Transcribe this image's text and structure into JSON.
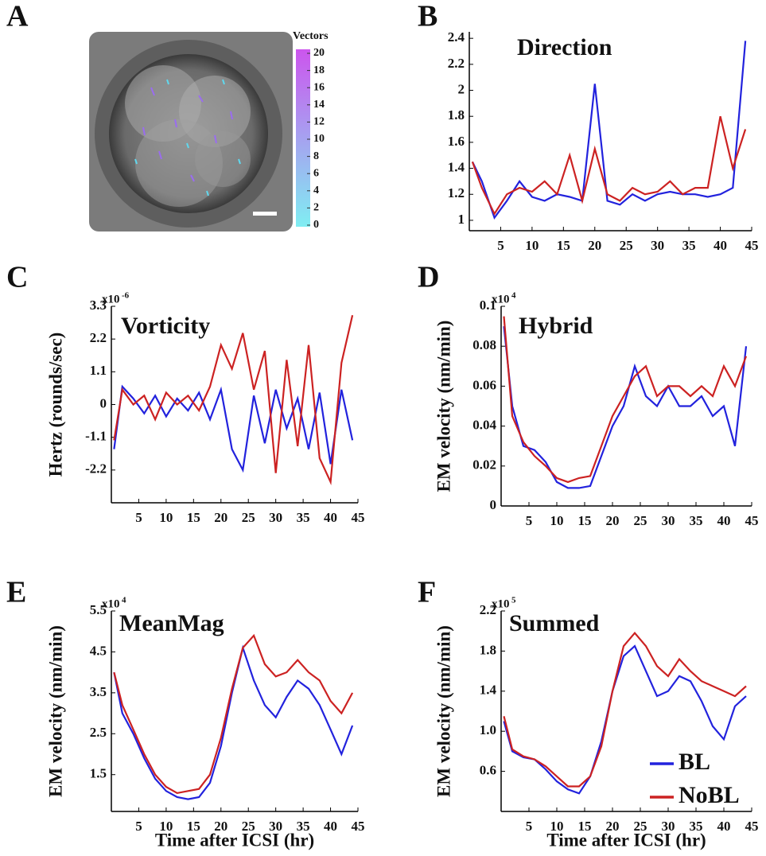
{
  "panel_a": {
    "label": "A",
    "colorbar_title": "Vectors",
    "clim": [
      0,
      20
    ],
    "colorbar_ticks": [
      0,
      2,
      4,
      6,
      8,
      10,
      12,
      14,
      16,
      18,
      20
    ],
    "colors": [
      "#80eef2",
      "#cc55ee"
    ]
  },
  "chart_data": [
    {
      "type": "line",
      "panel": "B",
      "title": "Direction",
      "x": [
        0.5,
        2,
        4,
        6,
        8,
        10,
        12,
        14,
        16,
        18,
        20,
        22,
        24,
        26,
        28,
        30,
        32,
        34,
        36,
        38,
        40,
        42,
        44
      ],
      "series": [
        {
          "color": "#2222dd",
          "values": [
            1.45,
            1.3,
            1.02,
            1.15,
            1.3,
            1.18,
            1.15,
            1.2,
            1.18,
            1.15,
            2.05,
            1.15,
            1.12,
            1.2,
            1.15,
            1.2,
            1.22,
            1.2,
            1.2,
            1.18,
            1.2,
            1.25,
            2.38
          ]
        },
        {
          "color": "#cc2222",
          "values": [
            1.45,
            1.25,
            1.05,
            1.2,
            1.25,
            1.22,
            1.3,
            1.2,
            1.5,
            1.15,
            1.55,
            1.2,
            1.15,
            1.25,
            1.2,
            1.22,
            1.3,
            1.2,
            1.25,
            1.25,
            1.8,
            1.4,
            1.7
          ]
        }
      ],
      "xlim": [
        0,
        45
      ],
      "xticks": [
        5,
        10,
        15,
        20,
        25,
        30,
        35,
        40,
        45
      ],
      "ylim": [
        0.92,
        2.45
      ],
      "yticks": [
        1,
        1.2,
        1.4,
        1.6,
        1.8,
        2,
        2.2,
        2.4
      ]
    },
    {
      "type": "line",
      "panel": "C",
      "title": "Vorticity",
      "ylabel": "Hertz (rounds/sec)",
      "y_multiplier": {
        "base": "x10",
        "exponent": "-6"
      },
      "x": [
        0.5,
        2,
        4,
        6,
        8,
        10,
        12,
        14,
        16,
        18,
        20,
        22,
        24,
        26,
        28,
        30,
        32,
        34,
        36,
        38,
        40,
        42,
        44
      ],
      "series": [
        {
          "color": "#2222dd",
          "values": [
            -1.5,
            0.6,
            0.2,
            -0.3,
            0.3,
            -0.4,
            0.2,
            -0.2,
            0.4,
            -0.5,
            0.5,
            -1.5,
            -2.2,
            0.3,
            -1.3,
            0.5,
            -0.8,
            0.2,
            -1.5,
            0.4,
            -2,
            0.5,
            -1.2
          ]
        },
        {
          "color": "#cc2222",
          "values": [
            -1.2,
            0.5,
            0,
            0.3,
            -0.5,
            0.4,
            0,
            0.3,
            -0.2,
            0.6,
            2,
            1.2,
            2.4,
            0.5,
            1.8,
            -2.3,
            1.5,
            -1.4,
            2,
            -1.8,
            -2.6,
            1.4,
            3
          ]
        }
      ],
      "xlim": [
        0,
        45
      ],
      "xticks": [
        5,
        10,
        15,
        20,
        25,
        30,
        35,
        40,
        45
      ],
      "ylim": [
        -3.3,
        3.3
      ],
      "yticks": [
        -2.2,
        -1.1,
        0,
        1.1,
        2.2,
        3.3
      ]
    },
    {
      "type": "line",
      "panel": "D",
      "title": "Hybrid",
      "ylabel": "EM velocity (nm/min)",
      "y_multiplier": {
        "base": "x10",
        "exponent": "4"
      },
      "x": [
        0.5,
        2,
        4,
        6,
        8,
        10,
        12,
        14,
        16,
        18,
        20,
        22,
        24,
        26,
        28,
        30,
        32,
        34,
        36,
        38,
        40,
        42,
        44
      ],
      "series": [
        {
          "color": "#2222dd",
          "values": [
            0.09,
            0.05,
            0.03,
            0.028,
            0.022,
            0.012,
            0.009,
            0.009,
            0.01,
            0.025,
            0.04,
            0.05,
            0.07,
            0.055,
            0.05,
            0.06,
            0.05,
            0.05,
            0.055,
            0.045,
            0.05,
            0.03,
            0.08
          ]
        },
        {
          "color": "#cc2222",
          "values": [
            0.095,
            0.045,
            0.032,
            0.025,
            0.02,
            0.014,
            0.012,
            0.014,
            0.015,
            0.03,
            0.045,
            0.055,
            0.065,
            0.07,
            0.055,
            0.06,
            0.06,
            0.055,
            0.06,
            0.055,
            0.07,
            0.06,
            0.075
          ]
        }
      ],
      "xlim": [
        0,
        45
      ],
      "xticks": [
        5,
        10,
        15,
        20,
        25,
        30,
        35,
        40,
        45
      ],
      "ylim": [
        0,
        0.1
      ],
      "yticks": [
        0,
        0.02,
        0.04,
        0.06,
        0.08,
        0.1
      ]
    },
    {
      "type": "line",
      "panel": "E",
      "title": "MeanMag",
      "ylabel": "EM velocity (nm/min)",
      "xlabel": "Time after ICSI (hr)",
      "y_multiplier": {
        "base": "x10",
        "exponent": "4"
      },
      "x": [
        0.5,
        2,
        4,
        6,
        8,
        10,
        12,
        14,
        16,
        18,
        20,
        22,
        24,
        26,
        28,
        30,
        32,
        34,
        36,
        38,
        40,
        42,
        44
      ],
      "series": [
        {
          "color": "#2222dd",
          "values": [
            4.0,
            3.0,
            2.5,
            1.9,
            1.4,
            1.1,
            0.95,
            0.9,
            0.95,
            1.3,
            2.2,
            3.5,
            4.6,
            3.8,
            3.2,
            2.9,
            3.4,
            3.8,
            3.6,
            3.2,
            2.6,
            2.0,
            2.7
          ]
        },
        {
          "color": "#cc2222",
          "values": [
            4.0,
            3.2,
            2.6,
            2.0,
            1.5,
            1.2,
            1.05,
            1.1,
            1.15,
            1.5,
            2.4,
            3.6,
            4.6,
            4.9,
            4.2,
            3.9,
            4.0,
            4.3,
            4.0,
            3.8,
            3.3,
            3.0,
            3.5
          ]
        }
      ],
      "xlim": [
        0,
        45
      ],
      "xticks": [
        5,
        10,
        15,
        20,
        25,
        30,
        35,
        40,
        45
      ],
      "ylim": [
        0.6,
        5.5
      ],
      "yticks": [
        1.5,
        2.5,
        3.5,
        4.5,
        5.5
      ]
    },
    {
      "type": "line",
      "panel": "F",
      "title": "Summed",
      "ylabel": "EM velocity (nm/min)",
      "xlabel": "Time after ICSI (hr)",
      "y_multiplier": {
        "base": "x10",
        "exponent": "5"
      },
      "x": [
        0.5,
        2,
        4,
        6,
        8,
        10,
        12,
        14,
        16,
        18,
        20,
        22,
        24,
        26,
        28,
        30,
        32,
        34,
        36,
        38,
        40,
        42,
        44
      ],
      "series": [
        {
          "name": "BL",
          "color": "#2222dd",
          "values": [
            1.1,
            0.8,
            0.74,
            0.72,
            0.62,
            0.5,
            0.42,
            0.38,
            0.55,
            0.9,
            1.4,
            1.75,
            1.85,
            1.6,
            1.35,
            1.4,
            1.55,
            1.5,
            1.3,
            1.05,
            0.92,
            1.25,
            1.35
          ]
        },
        {
          "name": "NoBL",
          "color": "#cc2222",
          "values": [
            1.15,
            0.82,
            0.75,
            0.72,
            0.65,
            0.55,
            0.45,
            0.45,
            0.55,
            0.85,
            1.4,
            1.85,
            1.98,
            1.85,
            1.65,
            1.55,
            1.72,
            1.6,
            1.5,
            1.45,
            1.4,
            1.35,
            1.45
          ]
        }
      ],
      "legend": "lower right",
      "xlim": [
        0,
        45
      ],
      "xticks": [
        5,
        10,
        15,
        20,
        25,
        30,
        35,
        40,
        45
      ],
      "ylim": [
        0.2,
        2.2
      ],
      "yticks": [
        0.6,
        {
          "value": 1,
          "label": "1.0"
        },
        1.4,
        1.8,
        2.2
      ]
    }
  ]
}
